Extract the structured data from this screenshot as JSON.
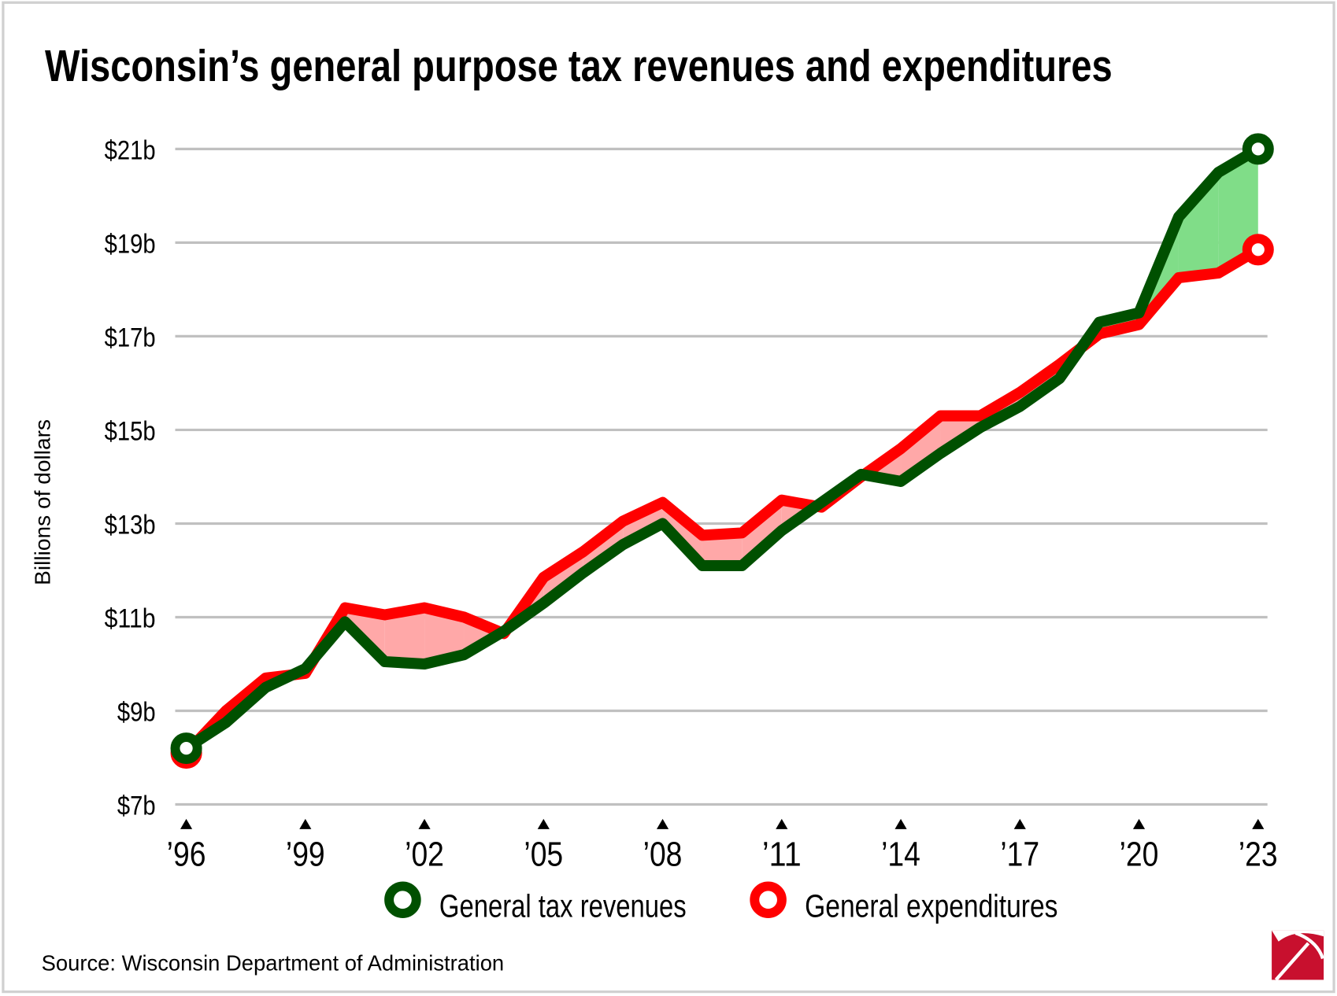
{
  "chart_data": {
    "type": "line",
    "title": "Wisconsin’s general purpose tax revenues and expenditures",
    "ylabel": "Billions of dollars",
    "xlabel": "",
    "source": "Source: Wisconsin Department of Administration",
    "x": [
      1996,
      1997,
      1998,
      1999,
      2000,
      2001,
      2002,
      2003,
      2004,
      2005,
      2006,
      2007,
      2008,
      2009,
      2010,
      2011,
      2012,
      2013,
      2014,
      2015,
      2016,
      2017,
      2018,
      2019,
      2020,
      2021,
      2022,
      2023
    ],
    "x_tick_labels": [
      "’96",
      "’99",
      "’02",
      "’05",
      "’08",
      "’11",
      "’14",
      "’17",
      "’20",
      "’23"
    ],
    "x_ticks": [
      1996,
      1999,
      2002,
      2005,
      2008,
      2011,
      2014,
      2017,
      2020,
      2023
    ],
    "y_ticks": [
      7,
      9,
      11,
      13,
      15,
      17,
      19,
      21
    ],
    "y_tick_labels": [
      "$7b",
      "$9b",
      "$11b",
      "$13b",
      "$15b",
      "$17b",
      "$19b",
      "$21b"
    ],
    "ylim": [
      7,
      21
    ],
    "grid": true,
    "legend_position": "bottom",
    "series": [
      {
        "name": "General tax revenues",
        "color": "#005000",
        "fill_when_higher": "#80dd88",
        "values": [
          8.2,
          8.75,
          9.5,
          9.9,
          10.9,
          10.05,
          10.0,
          10.2,
          10.7,
          11.3,
          11.95,
          12.55,
          13.0,
          12.1,
          12.1,
          12.85,
          13.45,
          14.05,
          13.9,
          14.5,
          15.05,
          15.5,
          16.1,
          17.3,
          17.5,
          19.55,
          20.5,
          21.0
        ]
      },
      {
        "name": "General expenditures",
        "color": "#ff0000",
        "fill_when_higher": "#ffa8a8",
        "values": [
          8.1,
          9.0,
          9.7,
          9.8,
          11.2,
          11.05,
          11.2,
          11.0,
          10.65,
          11.85,
          12.4,
          13.05,
          13.45,
          12.75,
          12.8,
          13.5,
          13.35,
          14.0,
          14.6,
          15.3,
          15.3,
          15.8,
          16.4,
          17.05,
          17.25,
          18.25,
          18.35,
          18.85
        ]
      }
    ]
  }
}
